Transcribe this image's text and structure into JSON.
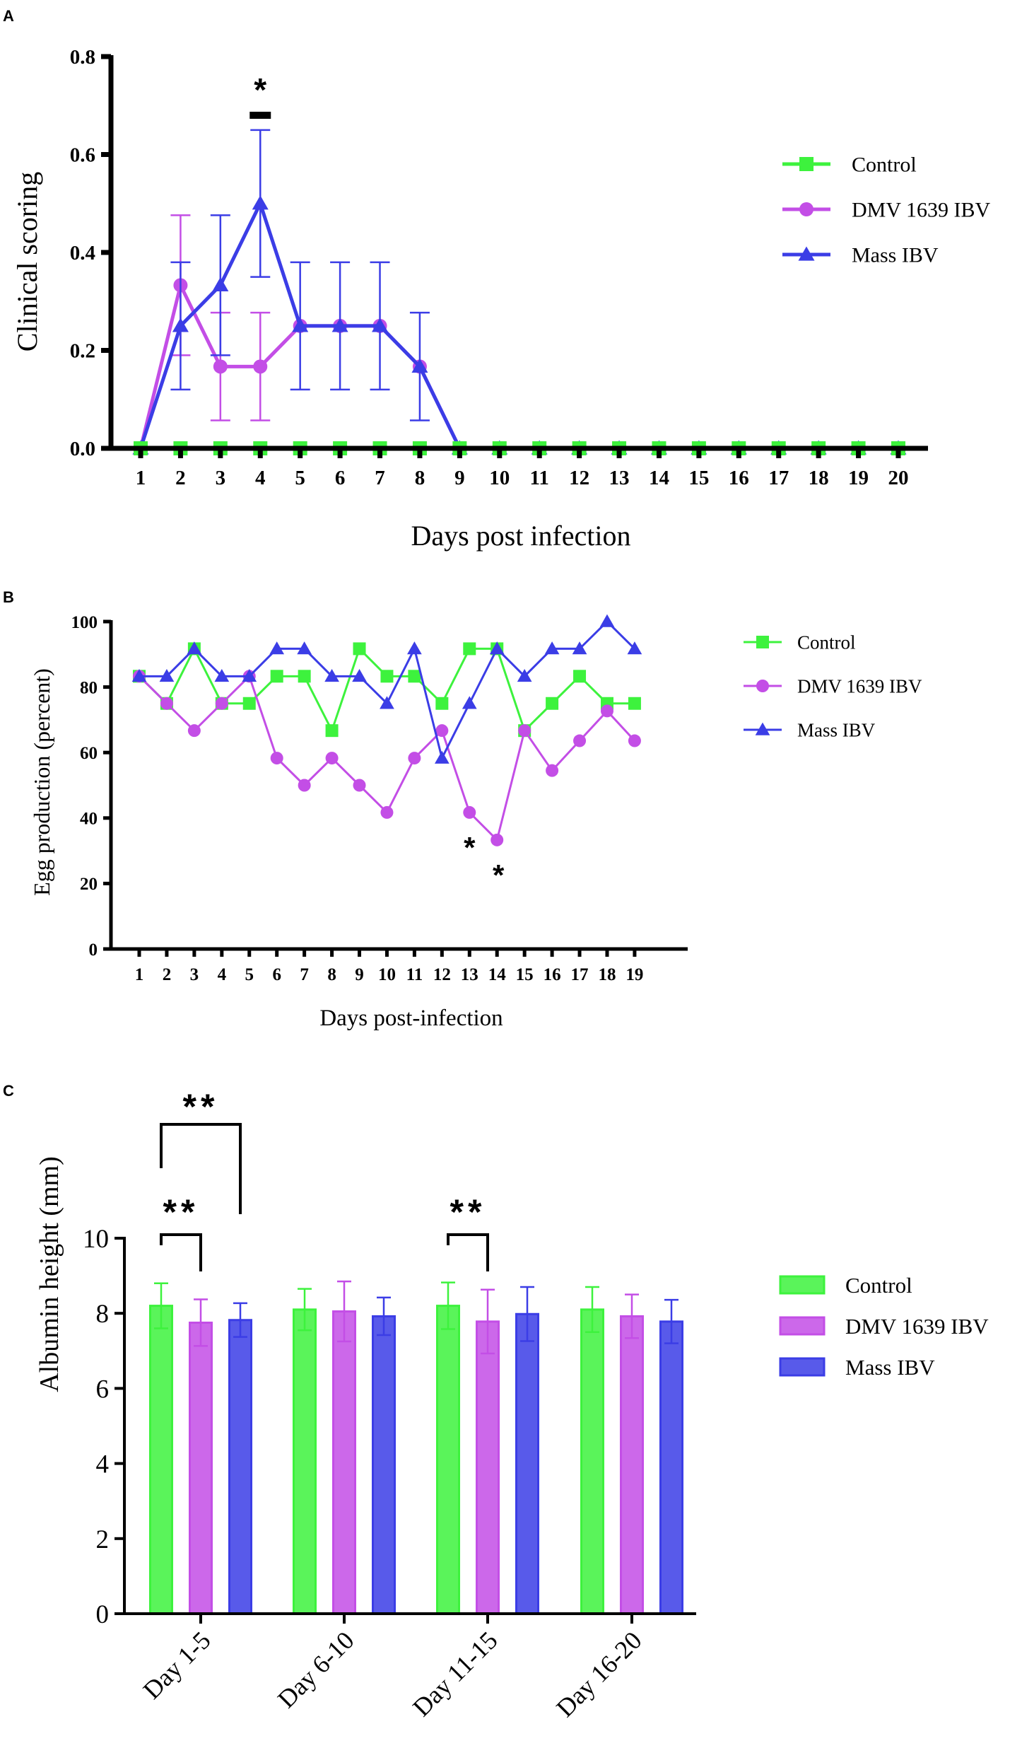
{
  "colors": {
    "control": "#3df23d",
    "dmv": "#c34ee6",
    "mass": "#3b3de6",
    "axis": "#000000"
  },
  "chart_data": [
    {
      "panel": "A",
      "type": "line",
      "xlabel": "Days post infection",
      "ylabel": "Clinical scoring",
      "ylim": [
        0,
        0.8
      ],
      "yticks": [
        "0.0",
        "0.2",
        "0.4",
        "0.6",
        "0.8"
      ],
      "categories": [
        "1",
        "2",
        "3",
        "4",
        "5",
        "6",
        "7",
        "8",
        "9",
        "10",
        "11",
        "12",
        "13",
        "14",
        "15",
        "16",
        "17",
        "18",
        "19",
        "20"
      ],
      "legend_position": "right",
      "series": [
        {
          "name": "Control",
          "marker": "square",
          "values": [
            0,
            0,
            0,
            0,
            0,
            0,
            0,
            0,
            0,
            0,
            0,
            0,
            0,
            0,
            0,
            0,
            0,
            0,
            0,
            0
          ]
        },
        {
          "name": "DMV 1639 IBV",
          "marker": "circle",
          "values": [
            0,
            0.333,
            0.167,
            0.167,
            0.25,
            0.25,
            0.25,
            0.167,
            0,
            0,
            0,
            0,
            0,
            0,
            0,
            0,
            0,
            0,
            0,
            0
          ],
          "errors": [
            0,
            0.143,
            0.11,
            0.11,
            0,
            0,
            0,
            0,
            0,
            0,
            0,
            0,
            0,
            0,
            0,
            0,
            0,
            0,
            0,
            0
          ]
        },
        {
          "name": "Mass IBV",
          "marker": "triangle",
          "values": [
            0,
            0.25,
            0.333,
            0.5,
            0.25,
            0.25,
            0.25,
            0.167,
            0,
            0,
            0,
            0,
            0,
            0,
            0,
            0,
            0,
            0,
            0,
            0
          ],
          "errors": [
            0,
            0.13,
            0.143,
            0.15,
            0.13,
            0.13,
            0.13,
            0.11,
            0,
            0,
            0,
            0,
            0,
            0,
            0,
            0,
            0,
            0,
            0,
            0
          ]
        }
      ],
      "annotations": [
        {
          "text": "*",
          "category": "4"
        }
      ]
    },
    {
      "panel": "B",
      "type": "line",
      "xlabel": "Days post-infection",
      "ylabel": "Egg production (percent)",
      "ylim": [
        0,
        100
      ],
      "yticks": [
        "0",
        "20",
        "40",
        "60",
        "80",
        "100"
      ],
      "categories": [
        "1",
        "2",
        "3",
        "4",
        "5",
        "6",
        "7",
        "8",
        "9",
        "10",
        "11",
        "12",
        "13",
        "14",
        "15",
        "16",
        "17",
        "18",
        "19"
      ],
      "legend_position": "right",
      "series": [
        {
          "name": "Control",
          "marker": "square",
          "values": [
            83.3,
            75,
            91.7,
            75,
            75,
            83.3,
            83.3,
            66.7,
            91.7,
            83.3,
            83.3,
            75,
            91.7,
            91.7,
            66.7,
            75,
            83.3,
            75,
            75
          ]
        },
        {
          "name": "DMV 1639 IBV",
          "marker": "circle",
          "values": [
            83.3,
            75,
            66.7,
            75,
            83.3,
            58.3,
            50,
            58.3,
            50,
            41.7,
            58.3,
            66.7,
            41.7,
            33.3,
            66.7,
            54.5,
            63.6,
            72.7,
            63.6
          ]
        },
        {
          "name": "Mass IBV",
          "marker": "triangle",
          "values": [
            83.3,
            83.3,
            91.7,
            83.3,
            83.3,
            91.7,
            91.7,
            83.3,
            83.3,
            75,
            91.7,
            58.3,
            75,
            91.7,
            83.3,
            91.7,
            91.7,
            100,
            91.7
          ]
        }
      ],
      "annotations": [
        {
          "text": "*",
          "category": "13"
        },
        {
          "text": "*",
          "category": "14"
        }
      ]
    },
    {
      "panel": "C",
      "type": "bar",
      "xlabel": "",
      "ylabel": "Albumin height (mm)",
      "ylim": [
        0,
        10
      ],
      "yticks": [
        "0",
        "2",
        "4",
        "6",
        "8",
        "10"
      ],
      "categories": [
        "Day 1-5",
        "Day 6-10",
        "Day 11-15",
        "Day 16-20"
      ],
      "legend_position": "right",
      "series": [
        {
          "name": "Control",
          "values": [
            8.2,
            8.1,
            8.2,
            8.1
          ],
          "errors": [
            0.6,
            0.55,
            0.62,
            0.6
          ]
        },
        {
          "name": "DMV 1639 IBV",
          "values": [
            7.75,
            8.05,
            7.78,
            7.92
          ],
          "errors": [
            0.62,
            0.8,
            0.85,
            0.58
          ]
        },
        {
          "name": "Mass IBV",
          "values": [
            7.82,
            7.92,
            7.98,
            7.78
          ],
          "errors": [
            0.45,
            0.5,
            0.72,
            0.58
          ]
        }
      ],
      "annotations": [
        {
          "text": "**",
          "from": "Day 1-5 Control",
          "to": "Day 1-5 Mass IBV"
        },
        {
          "text": "**",
          "from": "Day 1-5 Control",
          "to": "Day 1-5 DMV 1639 IBV"
        },
        {
          "text": "**",
          "from": "Day 11-15 Control",
          "to": "Day 11-15 DMV 1639 IBV"
        }
      ]
    }
  ],
  "panel_labels": [
    "A",
    "B",
    "C"
  ]
}
